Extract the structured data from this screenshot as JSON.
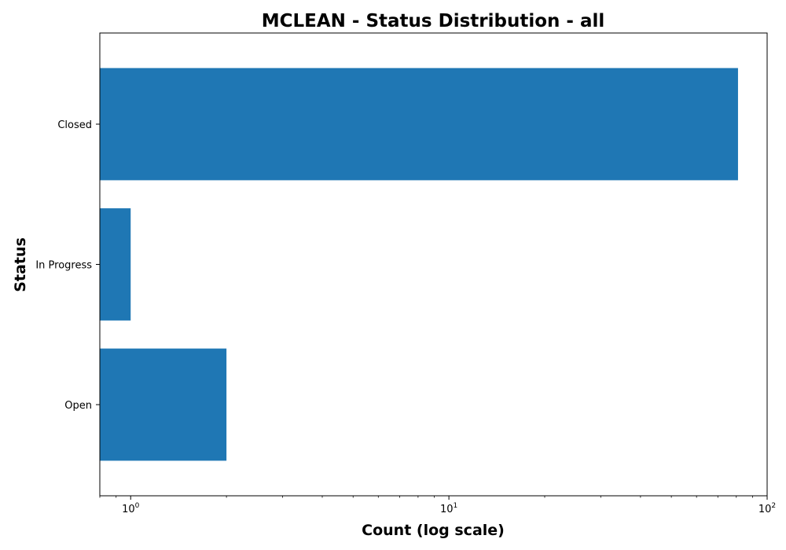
{
  "chart_data": {
    "type": "bar",
    "orientation": "horizontal",
    "title": "MCLEAN - Status Distribution - all",
    "xlabel": "Count (log scale)",
    "ylabel": "Status",
    "x_scale": "log",
    "xlim": [
      0.8,
      100
    ],
    "x_ticks": [
      {
        "value": 1,
        "base": "10",
        "exp": "0"
      },
      {
        "value": 10,
        "base": "10",
        "exp": "1"
      },
      {
        "value": 100,
        "base": "10",
        "exp": "2"
      }
    ],
    "categories": [
      "Closed",
      "In Progress",
      "Open"
    ],
    "values": [
      81,
      1,
      2
    ],
    "bar_color": "#1f77b4",
    "grid": false,
    "legend": false
  }
}
